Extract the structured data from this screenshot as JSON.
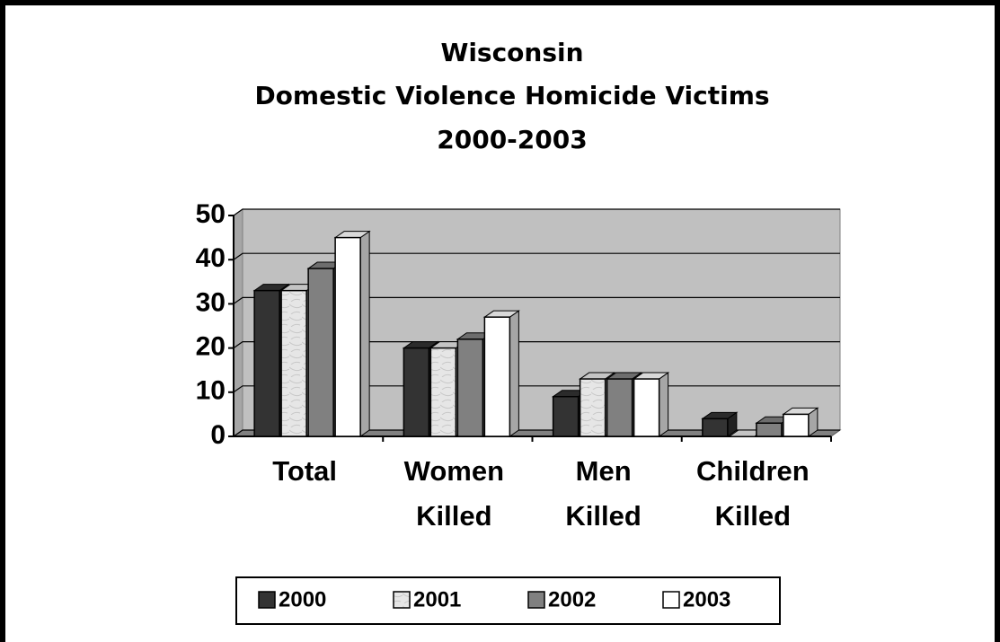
{
  "chart_data": {
    "type": "bar3d",
    "title": [
      "Wisconsin",
      "Domestic Violence Homicide Victims",
      "2000-2003"
    ],
    "categories": [
      "Total",
      "Women Killed",
      "Men Killed",
      "Children Killed"
    ],
    "series": [
      {
        "name": "2000",
        "color": "#333333",
        "values": [
          33,
          20,
          9,
          4
        ]
      },
      {
        "name": "2001",
        "color": "#e6e6e6",
        "values": [
          33,
          20,
          13,
          0
        ]
      },
      {
        "name": "2002",
        "color": "#808080",
        "values": [
          38,
          22,
          13,
          3
        ]
      },
      {
        "name": "2003",
        "color": "#ffffff",
        "values": [
          45,
          27,
          13,
          5
        ]
      }
    ],
    "ylim": [
      0,
      50
    ],
    "yticks": [
      0,
      10,
      20,
      30,
      40,
      50
    ],
    "grid": true,
    "legend": "bottom"
  }
}
